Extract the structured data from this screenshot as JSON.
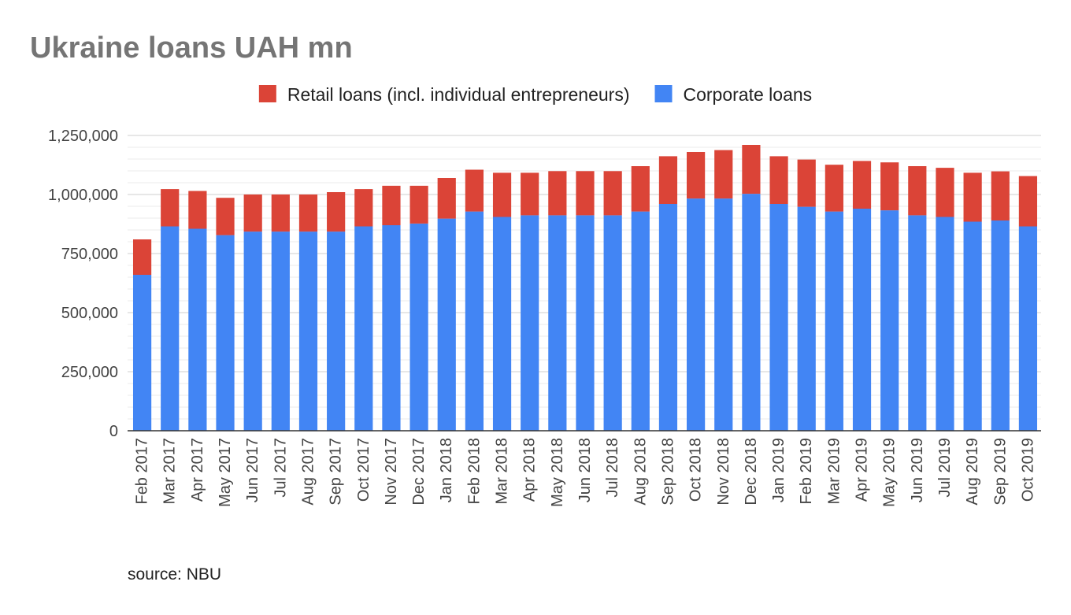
{
  "chart_data": {
    "type": "bar",
    "stacked": true,
    "title": "Ukraine loans UAH mn",
    "source": "source: NBU",
    "legend_position": "top",
    "grid": true,
    "ylim": [
      0,
      1250000
    ],
    "yticks": [
      "0",
      "250,000",
      "500,000",
      "750,000",
      "1,000,000",
      "1,250,000"
    ],
    "ytick_values": [
      0,
      250000,
      500000,
      750000,
      1000000,
      1250000
    ],
    "categories": [
      "Feb 2017",
      "Mar 2017",
      "Apr 2017",
      "May 2017",
      "Jun 2017",
      "Jul 2017",
      "Aug 2017",
      "Sep 2017",
      "Oct 2017",
      "Nov 2017",
      "Dec 2017",
      "Jan 2018",
      "Feb 2018",
      "Mar 2018",
      "Apr 2018",
      "May 2018",
      "Jun 2018",
      "Jul 2018",
      "Aug 2018",
      "Sep 2018",
      "Oct 2018",
      "Nov 2018",
      "Dec 2018",
      "Jan 2019",
      "Feb 2019",
      "Mar 2019",
      "Apr 2019",
      "May 2019",
      "Jun 2019",
      "Jul 2019",
      "Aug 2019",
      "Sep 2019",
      "Oct 2019"
    ],
    "series": [
      {
        "name": "Corporate loans",
        "color": "#4285f4",
        "values": [
          660000,
          865000,
          855000,
          828000,
          843000,
          843000,
          843000,
          843000,
          865000,
          870000,
          877000,
          898000,
          928000,
          905000,
          912000,
          912000,
          912000,
          912000,
          928000,
          960000,
          983000,
          983000,
          1003000,
          960000,
          948000,
          928000,
          940000,
          933000,
          912000,
          905000,
          885000,
          890000,
          865000
        ]
      },
      {
        "name": "Retail loans (incl. individual entrepreneurs)",
        "color": "#db4437",
        "values": [
          150000,
          158000,
          160000,
          158000,
          157000,
          157000,
          157000,
          167000,
          158000,
          167000,
          160000,
          172000,
          177000,
          187000,
          180000,
          187000,
          187000,
          187000,
          192000,
          202000,
          197000,
          205000,
          207000,
          202000,
          200000,
          198000,
          202000,
          203000,
          208000,
          208000,
          207000,
          208000,
          213000
        ]
      }
    ],
    "legend_order": [
      1,
      0
    ]
  }
}
